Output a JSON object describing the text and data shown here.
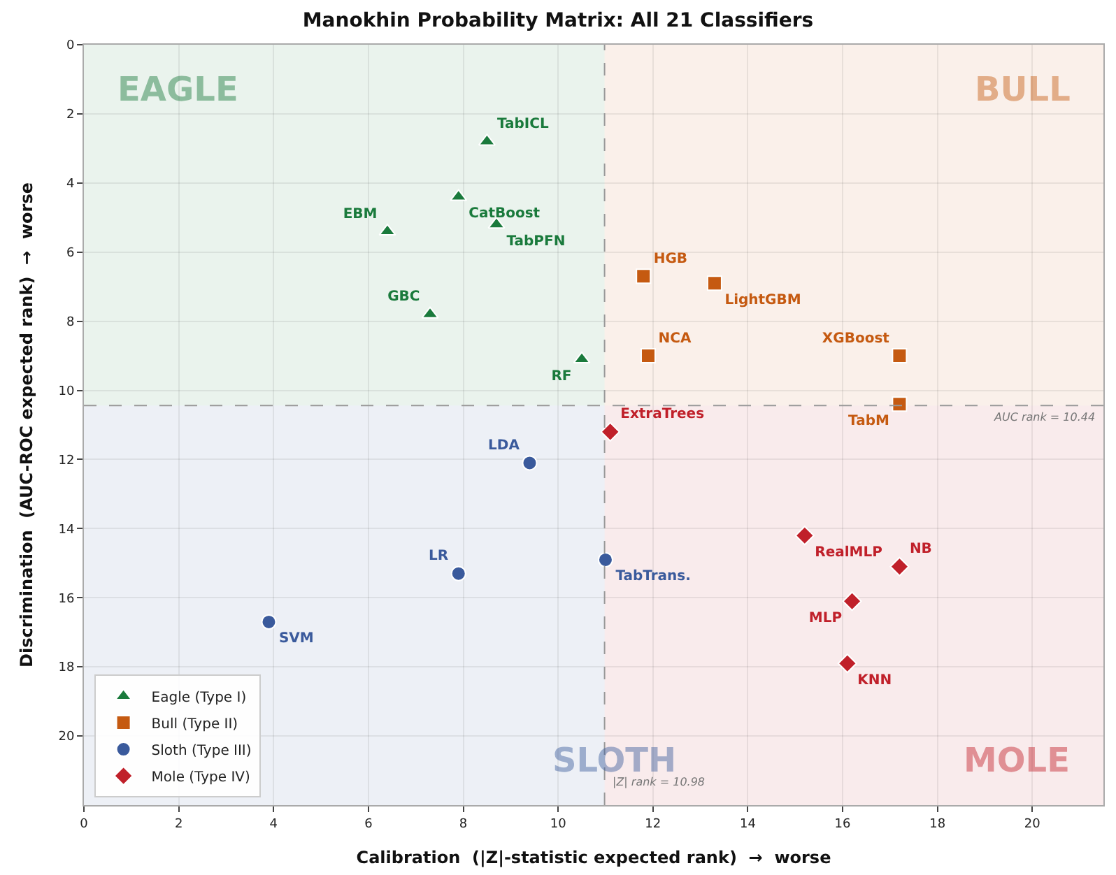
{
  "chart_data": {
    "type": "scatter",
    "title": "Manokhin Probability Matrix: All 21 Classifiers",
    "xlabel": "Calibration  (|Z|-statistic expected rank)  →  worse",
    "ylabel": "Discrimination  (AUC-ROC expected rank)  →  worse",
    "xlim": [
      0,
      21.5
    ],
    "ylim": [
      22,
      0
    ],
    "xticks": [
      0,
      2,
      4,
      6,
      8,
      10,
      12,
      14,
      16,
      18,
      20
    ],
    "yticks": [
      0,
      2,
      4,
      6,
      8,
      10,
      12,
      14,
      16,
      18,
      20
    ],
    "grid": true,
    "legend": "bottom left",
    "series": [
      {
        "name": "Eagle (Type I)",
        "color": "#1a7a3c",
        "marker": "triangle",
        "x": [
          8.5,
          7.9,
          8.7,
          6.4,
          7.3,
          10.5
        ],
        "values": [
          2.8,
          4.4,
          5.2,
          5.4,
          7.8,
          9.1
        ],
        "value_labels": [
          "TabICL",
          "CatBoost",
          "TabPFN",
          "EBM",
          "GBC",
          "RF"
        ]
      },
      {
        "name": "Bull (Type II)",
        "color": "#c55a11",
        "marker": "square",
        "x": [
          11.8,
          13.3,
          11.9,
          17.2,
          17.2
        ],
        "values": [
          6.7,
          6.9,
          9.0,
          9.0,
          10.4
        ],
        "value_labels": [
          "HGB",
          "LightGBM",
          "NCA",
          "XGBoost",
          "TabM"
        ]
      },
      {
        "name": "Sloth (Type III)",
        "color": "#3a5a9c",
        "marker": "circle",
        "x": [
          9.4,
          7.9,
          3.9,
          11.0
        ],
        "values": [
          12.1,
          15.3,
          16.7,
          14.9
        ],
        "value_labels": [
          "LDA",
          "LR",
          "SVM",
          "TabTrans."
        ]
      },
      {
        "name": "Mole (Type IV)",
        "color": "#c0202a",
        "marker": "diamond",
        "x": [
          11.1,
          15.2,
          17.2,
          16.2,
          16.1
        ],
        "values": [
          11.2,
          14.2,
          15.1,
          16.1,
          17.9
        ],
        "value_labels": [
          "ExtraTrees",
          "RealMLP",
          "NB",
          "MLP",
          "KNN"
        ]
      }
    ],
    "ref_lines": [
      {
        "axis": "x",
        "value": 10.98,
        "label": "|Z| rank = 10.98",
        "color": "#999999",
        "line_style": "dashed"
      },
      {
        "axis": "y",
        "value": 10.44,
        "label": "AUC rank = 10.44",
        "color": "#999999",
        "line_style": "dashed"
      }
    ],
    "annotations": [
      "EAGLE",
      "BULL",
      "SLOTH",
      "MOLE"
    ]
  }
}
